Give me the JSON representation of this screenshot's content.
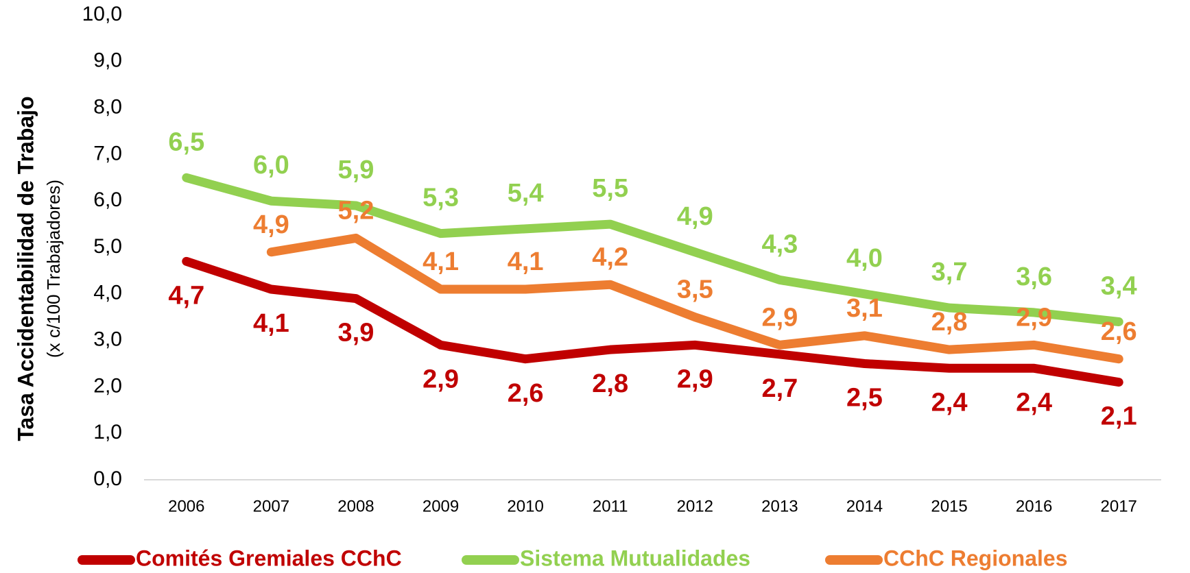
{
  "chart_data": {
    "type": "line",
    "y_label": [
      "Tasa Accidentabilidad de Trabajo",
      "(x c/100 Trabajadores)"
    ],
    "categories": [
      "2006",
      "2007",
      "2008",
      "2009",
      "2010",
      "2011",
      "2012",
      "2013",
      "2014",
      "2015",
      "2016",
      "2017"
    ],
    "series": [
      {
        "name": "Comités Gremiales CChC",
        "color": "#c00000",
        "values": [
          4.7,
          4.1,
          3.9,
          2.9,
          2.6,
          2.8,
          2.9,
          2.7,
          2.5,
          2.4,
          2.4,
          2.1
        ],
        "value_labels": [
          "4,7",
          "4,1",
          "3,9",
          "2,9",
          "2,6",
          "2,8",
          "2,9",
          "2,7",
          "2,5",
          "2,4",
          "2,4",
          "2,1"
        ]
      },
      {
        "name": "Sistema Mutualidades",
        "color": "#92d050",
        "values": [
          6.5,
          6.0,
          5.9,
          5.3,
          5.4,
          5.5,
          4.9,
          4.3,
          4.0,
          3.7,
          3.6,
          3.4
        ],
        "value_labels": [
          "6,5",
          "6,0",
          "5,9",
          "5,3",
          "5,4",
          "5,5",
          "4,9",
          "4,3",
          "4,0",
          "3,7",
          "3,6",
          "3,4"
        ]
      },
      {
        "name": "CChC Regionales",
        "color": "#ed7d31",
        "values": [
          null,
          4.9,
          5.2,
          4.1,
          4.1,
          4.2,
          3.5,
          2.9,
          3.1,
          2.8,
          2.9,
          2.6
        ],
        "value_labels": [
          null,
          "4,9",
          "5,2",
          "4,1",
          "4,1",
          "4,2",
          "3,5",
          "2,9",
          "3,1",
          "2,8",
          "2,9",
          "2,6"
        ]
      }
    ],
    "ylim": [
      0,
      10
    ],
    "yticks": [
      {
        "value": 0,
        "label": "0,0"
      },
      {
        "value": 1,
        "label": "1,0"
      },
      {
        "value": 2,
        "label": "2,0"
      },
      {
        "value": 3,
        "label": "3,0"
      },
      {
        "value": 4,
        "label": "4,0"
      },
      {
        "value": 5,
        "label": "5,0"
      },
      {
        "value": 6,
        "label": "6,0"
      },
      {
        "value": 7,
        "label": "7,0"
      },
      {
        "value": 8,
        "label": "8,0"
      },
      {
        "value": 9,
        "label": "9,0"
      },
      {
        "value": 10,
        "label": "10,0"
      }
    ],
    "legend": "bottom"
  }
}
